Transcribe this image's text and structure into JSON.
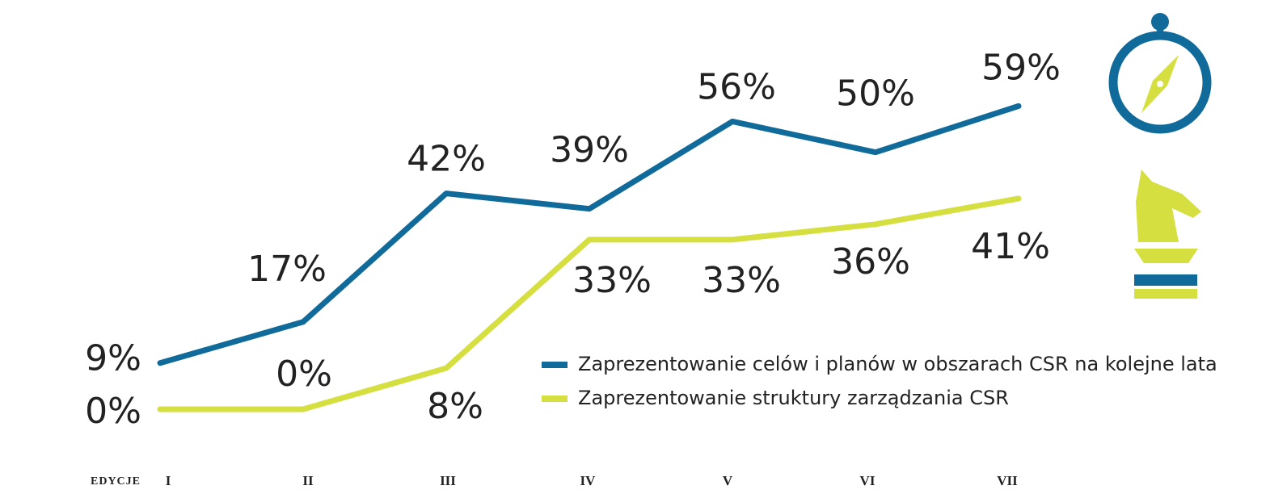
{
  "chart_data": {
    "type": "line",
    "x_label": "EDYCJE",
    "categories": [
      "I",
      "II",
      "III",
      "IV",
      "V",
      "VI",
      "VII"
    ],
    "ylim": [
      0,
      60
    ],
    "series": [
      {
        "name": "Zaprezentowanie celów i planów w obszarach CSR na kolejne lata",
        "color": "#106b9b",
        "values": [
          9,
          17,
          42,
          39,
          56,
          50,
          59
        ],
        "value_labels": [
          "9%",
          "17%",
          "42%",
          "39%",
          "56%",
          "50%",
          "59%"
        ]
      },
      {
        "name": "Zaprezentowanie struktury zarządzania CSR",
        "color": "#d5df3f",
        "values": [
          0,
          0,
          8,
          33,
          33,
          36,
          41
        ],
        "value_labels": [
          "0%",
          "0%",
          "8%",
          "33%",
          "33%",
          "36%",
          "41%"
        ]
      }
    ]
  }
}
